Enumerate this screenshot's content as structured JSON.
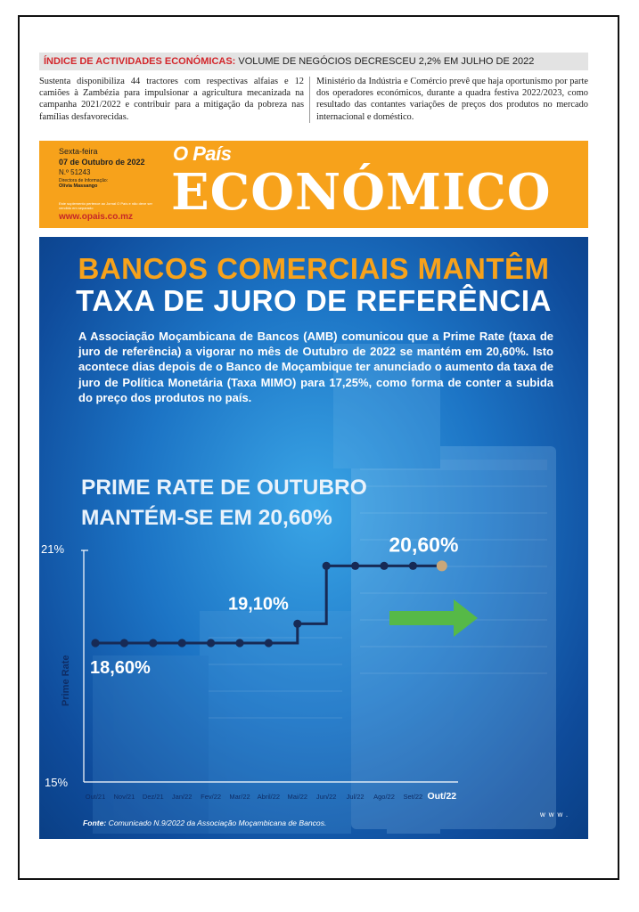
{
  "ticker": {
    "kicker": "ÍNDICE DE ACTIVIDADES ECONÓMICAS:",
    "text": " VOLUME DE NEGÓCIOS DECRESCEU 2,2% EM JULHO DE 2022"
  },
  "teasers": [
    "Sustenta disponibiliza 44 tractores com respectivas alfaias e 12 camiões à Zambézia para impulsionar a agricultura mecanizada na campanha 2021/2022 e contribuir para a mitigação da pobreza nas famílias desfavorecidas.",
    "Ministério da Indústria e Comércio prevê que haja oportunismo por parte dos operadores económicos, durante a quadra festiva 2022/2023, como resultado das contantes variações de preços dos produtos no mercado internacional e doméstico."
  ],
  "masthead": {
    "day": "Sexta-feira",
    "date": "07 de Outubro de 2022",
    "number": "N.º 51243",
    "director_label": "Directora de Informação:",
    "director_name": "Olívia Massango",
    "note": "Este suplemento pertence ao Jornal O País e não deve ser vendido em separado",
    "url": "www.opais.co.mz",
    "brand": "O País",
    "title": "ECONÓMICO"
  },
  "article": {
    "headline_line1": "BANCOS COMERCIAIS MANTÊM",
    "headline_line2": "TAXA DE JURO DE REFERÊNCIA",
    "lead": "A Associação Moçambicana de Bancos (AMB) comunicou que a Prime Rate (taxa de juro de referência) a vigorar no mês de Outubro de 2022 se mantém em 20,60%. Isto acontece dias depois de o Banco de Moçambique ter anunciado o aumento da taxa de juro de Política Monetária (Taxa MIMO) para 17,25%, como forma de conter a subida do preço dos produtos no país.",
    "subhead_line1": "PRIME RATE DE OUTUBRO",
    "subhead_line2": "MANTÉM-SE EM 20,60%",
    "source_label": "Fonte:",
    "source_text": " Comunicado N.9/2022 da Associação Moçambicana de Bancos.",
    "watermark": "www."
  },
  "colors": {
    "accent_orange": "#f7a21b",
    "line_navy": "#172a55",
    "arrow_green": "#56b947",
    "ticker_red": "#d3262b"
  },
  "chart_data": {
    "type": "line",
    "ylabel": "Prime Rate",
    "ylim": [
      15,
      21
    ],
    "ytick_labels": [
      "21%",
      "15%"
    ],
    "x": [
      "Out/21",
      "Nov/21",
      "Dez/21",
      "Jan/22",
      "Fev/22",
      "Mar/22",
      "Abril/22",
      "Mai/22",
      "Jun/22",
      "Jul/22",
      "Ago/22",
      "Set/22",
      "Out/22"
    ],
    "values": [
      18.6,
      18.6,
      18.6,
      18.6,
      18.6,
      18.6,
      18.6,
      19.1,
      20.6,
      20.6,
      20.6,
      20.6,
      20.6
    ],
    "step": true,
    "annotations": [
      {
        "text": "18,60%",
        "index": 0,
        "value": 18.6
      },
      {
        "text": "19,10%",
        "index": 7,
        "value": 19.1
      },
      {
        "text": "20,60%",
        "index": 11,
        "value": 20.6
      }
    ],
    "highlight_index": 12
  }
}
